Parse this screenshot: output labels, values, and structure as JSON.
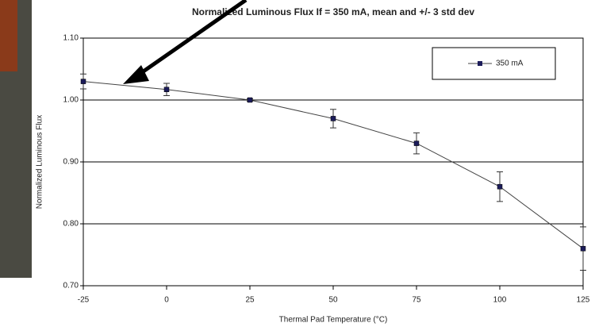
{
  "chart_data": {
    "type": "line",
    "title": "Normalized Luminous Flux If = 350 mA, mean and +/- 3 std dev",
    "xlabel": "Thermal Pad Temperature (°C)",
    "ylabel": "Normalized Luminous Flux",
    "x": [
      -25,
      0,
      25,
      50,
      75,
      100,
      125
    ],
    "series": [
      {
        "name": "350 mA",
        "color": "#1c1c5a",
        "values": [
          1.03,
          1.017,
          1.0,
          0.97,
          0.93,
          0.86,
          0.76
        ],
        "errors": [
          0.012,
          0.01,
          0.002,
          0.015,
          0.017,
          0.024,
          0.035
        ]
      }
    ],
    "xlim": [
      -25,
      125
    ],
    "xticks": [
      -25,
      0,
      25,
      50,
      75,
      100,
      125
    ],
    "ylim": [
      0.7,
      1.1
    ],
    "yticks": [
      {
        "value": 0.7,
        "label": "0.70"
      },
      {
        "value": 0.8,
        "label": "0.80"
      },
      {
        "value": 0.9,
        "label": "0.90"
      },
      {
        "value": 1.0,
        "label": "1.00"
      },
      {
        "value": 1.1,
        "label": "1.10"
      }
    ],
    "grid": true,
    "legend": "top-right"
  }
}
